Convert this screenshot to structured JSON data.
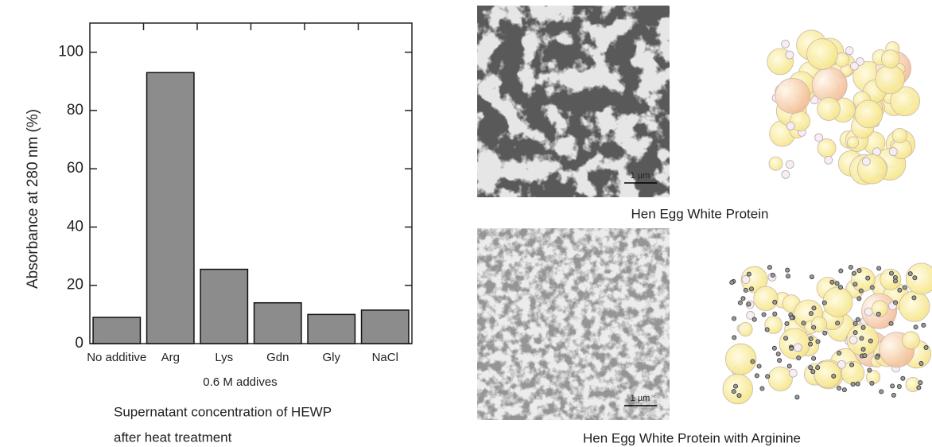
{
  "chart_data": {
    "type": "bar",
    "ylabel": "Absorbance at 280 nm (%)",
    "xlabel": "0.6 M addives",
    "caption": [
      "Supernatant concentration of HEWP",
      "after heat treatment"
    ],
    "categories": [
      "No additive",
      "Arg",
      "Lys",
      "Gdn",
      "Gly",
      "NaCl"
    ],
    "values": [
      9,
      93,
      25.5,
      14,
      10,
      11.5
    ],
    "color": "#8c8c8c",
    "ylim": [
      0,
      110
    ],
    "yticks": [
      0,
      20,
      40,
      60,
      80,
      100
    ],
    "grid": false
  },
  "images": [
    {
      "caption": "Hen Egg White Protein",
      "scale_bar": "1 µm"
    },
    {
      "caption": "Hen Egg White Protein with Arginine",
      "scale_bar": "1 µm"
    }
  ]
}
